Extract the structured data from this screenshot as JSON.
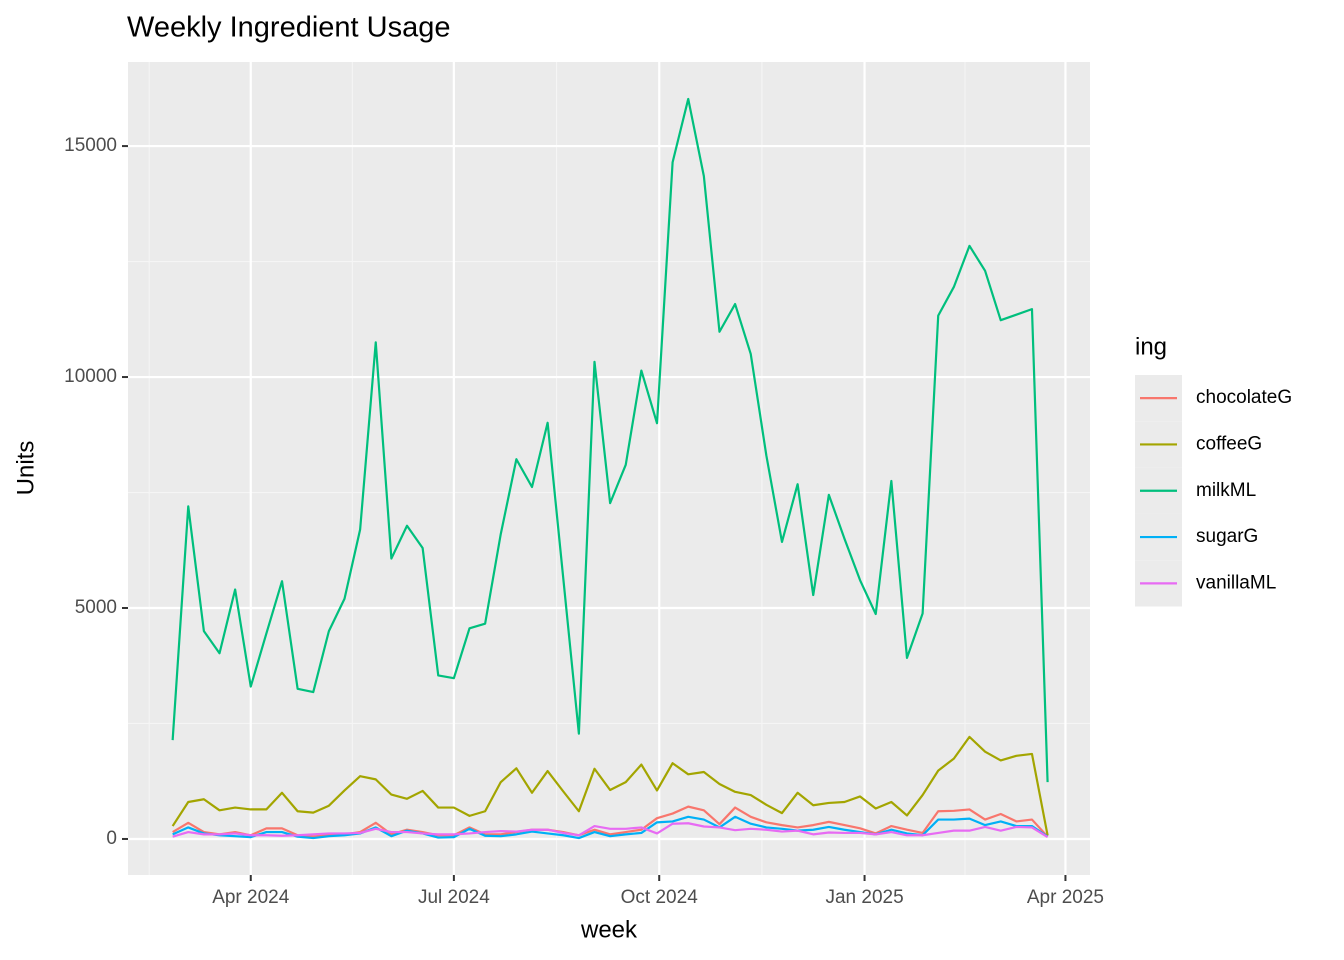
{
  "chart_data": {
    "type": "line",
    "title": "Weekly Ingredient Usage",
    "x_label": "week",
    "y_label": "Units",
    "legend_title": "ing",
    "legend_position": "right",
    "grid": true,
    "x": [
      "2024-02-26",
      "2024-03-04",
      "2024-03-11",
      "2024-03-18",
      "2024-03-25",
      "2024-04-01",
      "2024-04-08",
      "2024-04-15",
      "2024-04-22",
      "2024-04-29",
      "2024-05-06",
      "2024-05-13",
      "2024-05-20",
      "2024-05-27",
      "2024-06-03",
      "2024-06-10",
      "2024-06-17",
      "2024-06-24",
      "2024-07-01",
      "2024-07-08",
      "2024-07-15",
      "2024-07-22",
      "2024-07-29",
      "2024-08-05",
      "2024-08-12",
      "2024-08-19",
      "2024-08-26",
      "2024-09-02",
      "2024-09-09",
      "2024-09-16",
      "2024-09-23",
      "2024-09-30",
      "2024-10-07",
      "2024-10-14",
      "2024-10-21",
      "2024-10-28",
      "2024-11-04",
      "2024-11-11",
      "2024-11-18",
      "2024-11-25",
      "2024-12-02",
      "2024-12-09",
      "2024-12-16",
      "2024-12-23",
      "2024-12-30",
      "2025-01-06",
      "2025-01-13",
      "2025-01-20",
      "2025-01-27",
      "2025-02-03",
      "2025-02-10",
      "2025-02-17",
      "2025-02-24",
      "2025-03-03",
      "2025-03-10",
      "2025-03-17",
      "2025-03-24"
    ],
    "xlim": [
      "2024-02-06",
      "2025-04-12"
    ],
    "xticks": [
      {
        "value": "2024-04-01",
        "label": "Apr 2024"
      },
      {
        "value": "2024-07-01",
        "label": "Jul 2024"
      },
      {
        "value": "2024-10-01",
        "label": "Oct 2024"
      },
      {
        "value": "2025-01-01",
        "label": "Jan 2025"
      },
      {
        "value": "2025-04-01",
        "label": "Apr 2025"
      }
    ],
    "ylim": [
      -780,
      16820
    ],
    "yticks": [
      0,
      5000,
      10000,
      15000
    ],
    "series": [
      {
        "name": "chocolateG",
        "color": "#F8766D",
        "values": [
          150,
          350,
          150,
          100,
          150,
          80,
          230,
          230,
          80,
          50,
          100,
          100,
          150,
          350,
          100,
          200,
          150,
          80,
          80,
          250,
          100,
          100,
          150,
          200,
          200,
          150,
          80,
          200,
          100,
          150,
          200,
          450,
          550,
          700,
          620,
          320,
          680,
          480,
          360,
          300,
          250,
          300,
          370,
          300,
          230,
          120,
          280,
          200,
          130,
          600,
          610,
          640,
          420,
          540,
          380,
          420,
          50
        ]
      },
      {
        "name": "coffeeG",
        "color": "#A3A500",
        "values": [
          280,
          800,
          860,
          620,
          680,
          640,
          640,
          1000,
          600,
          570,
          720,
          1050,
          1360,
          1290,
          960,
          870,
          1040,
          680,
          680,
          500,
          600,
          1230,
          1530,
          1000,
          1470,
          1030,
          600,
          1520,
          1060,
          1230,
          1610,
          1050,
          1640,
          1400,
          1450,
          1190,
          1020,
          950,
          740,
          560,
          1000,
          730,
          780,
          800,
          920,
          660,
          800,
          510,
          950,
          1480,
          1740,
          2210,
          1890,
          1700,
          1800,
          1840,
          80
        ]
      },
      {
        "name": "milkML",
        "color": "#00BF7D",
        "values": [
          2140,
          7200,
          4500,
          4020,
          5400,
          3300,
          4450,
          5580,
          3250,
          3180,
          4500,
          5200,
          6700,
          10750,
          6070,
          6780,
          6300,
          3540,
          3480,
          4560,
          4660,
          6600,
          8220,
          7620,
          9010,
          5650,
          2280,
          10330,
          7270,
          8100,
          10140,
          9000,
          14650,
          16020,
          14350,
          10980,
          11580,
          10500,
          8300,
          6430,
          7680,
          5280,
          7450,
          6500,
          5600,
          4870,
          7750,
          3920,
          4880,
          11330,
          11950,
          12840,
          12300,
          11230,
          11350,
          11470,
          1230
        ]
      },
      {
        "name": "sugarG",
        "color": "#00B0F6",
        "values": [
          100,
          250,
          120,
          80,
          60,
          40,
          150,
          150,
          50,
          20,
          60,
          80,
          120,
          250,
          60,
          180,
          120,
          30,
          40,
          220,
          70,
          60,
          100,
          160,
          120,
          80,
          20,
          150,
          60,
          100,
          130,
          360,
          380,
          480,
          420,
          250,
          480,
          330,
          250,
          220,
          180,
          200,
          260,
          200,
          150,
          100,
          200,
          120,
          80,
          420,
          420,
          440,
          300,
          380,
          280,
          280,
          50
        ]
      },
      {
        "name": "vanillaML",
        "color": "#E76BF3",
        "values": [
          50,
          150,
          100,
          100,
          120,
          80,
          80,
          70,
          80,
          100,
          120,
          120,
          130,
          220,
          150,
          150,
          120,
          100,
          100,
          120,
          150,
          170,
          160,
          200,
          200,
          130,
          80,
          280,
          220,
          220,
          250,
          120,
          330,
          340,
          270,
          250,
          190,
          220,
          200,
          160,
          180,
          100,
          140,
          130,
          130,
          100,
          150,
          80,
          80,
          130,
          180,
          180,
          260,
          180,
          260,
          250,
          40
        ]
      }
    ]
  }
}
